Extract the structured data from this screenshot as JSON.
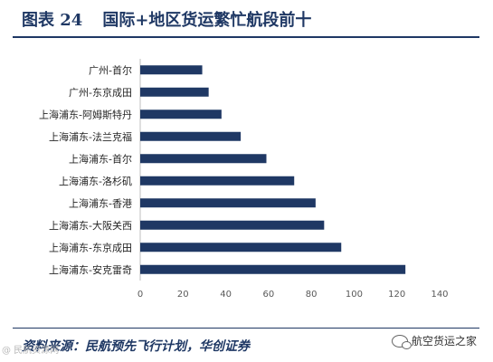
{
  "figure": {
    "number": "图表 24",
    "title": "国际+地区货运繁忙航段前十"
  },
  "source": "资料来源：民航预先飞行计划，华创证券",
  "watermarks": {
    "left": "@ 民航资源网",
    "right": "航空货运之家"
  },
  "colors": {
    "bar": "#1f3864",
    "rule": "#1f3864"
  },
  "chart_data": {
    "type": "bar",
    "orientation": "horizontal",
    "categories": [
      "广州-首尔",
      "广州-东京成田",
      "上海浦东-阿姆斯特丹",
      "上海浦东-法兰克福",
      "上海浦东-首尔",
      "上海浦东-洛杉矶",
      "上海浦东-香港",
      "上海浦东-大阪关西",
      "上海浦东-东京成田",
      "上海浦东-安克雷奇"
    ],
    "values": [
      29,
      32,
      38,
      47,
      59,
      72,
      82,
      86,
      94,
      124
    ],
    "xlim": [
      0,
      140
    ],
    "xticks": [
      0,
      20,
      40,
      60,
      80,
      100,
      120,
      140
    ],
    "grid": false,
    "legend": "none"
  }
}
